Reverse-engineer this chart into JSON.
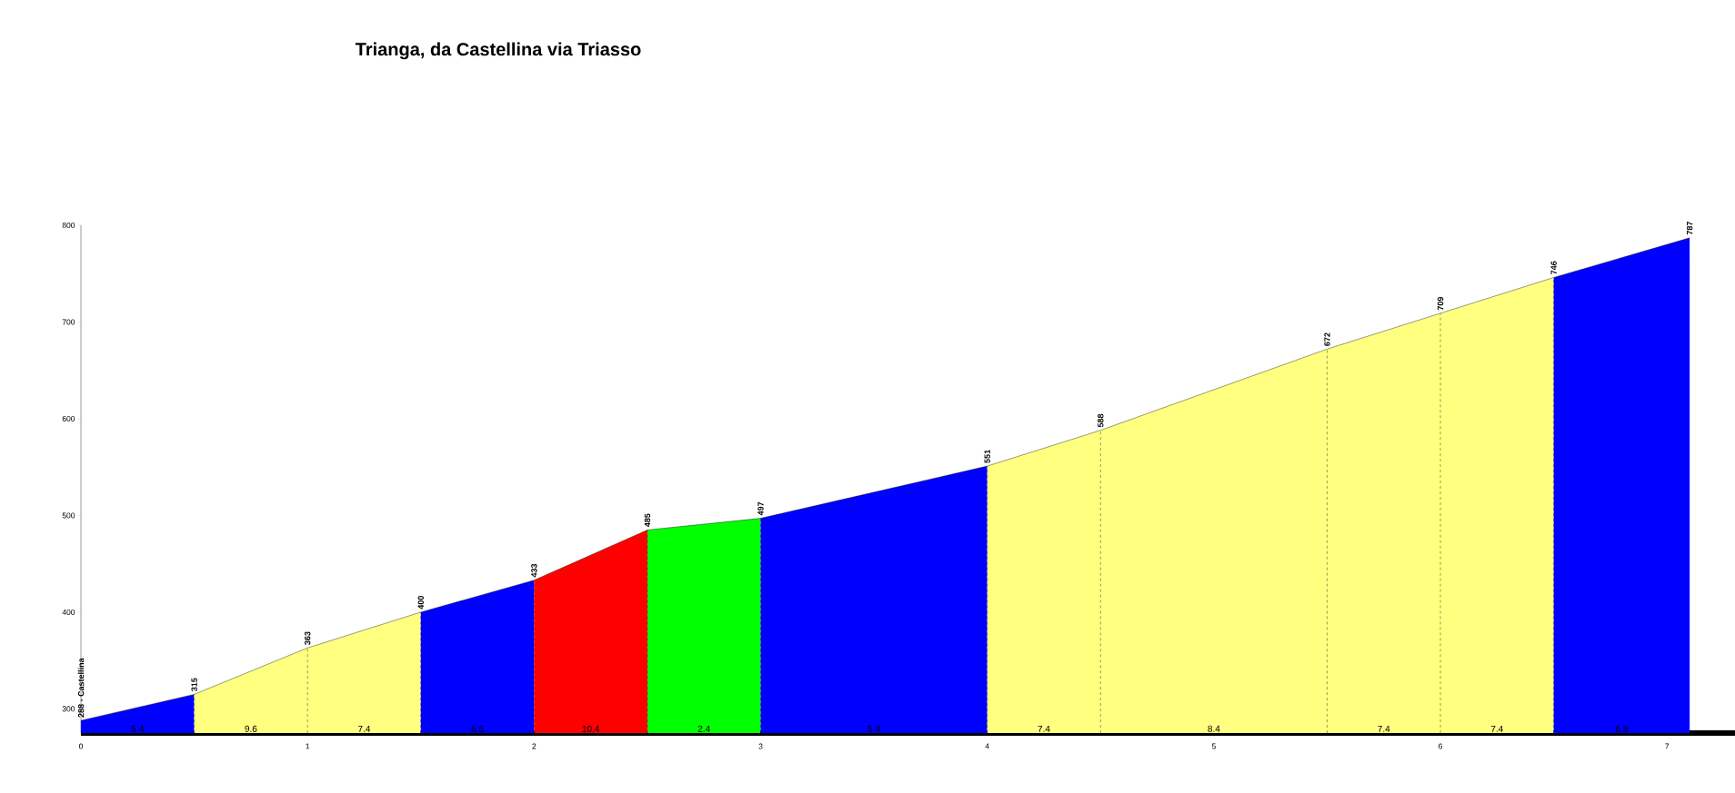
{
  "chart_data": {
    "type": "area",
    "title": "Trianga, da Castellina via Triasso",
    "series": [
      {
        "color": "#0000ff",
        "x": [
          0,
          0.5
        ],
        "values": [
          288,
          315
        ],
        "value_labels": [
          "288 - Castellina",
          null
        ]
      },
      {
        "color": "#ffff80",
        "x": [
          0.5,
          1,
          1.5
        ],
        "values": [
          315,
          363,
          400
        ],
        "value_labels": [
          "315",
          "363",
          null
        ]
      },
      {
        "color": "#0000ff",
        "x": [
          1.5,
          2
        ],
        "values": [
          400,
          433
        ],
        "value_labels": [
          "400",
          null
        ]
      },
      {
        "color": "#ff0000",
        "x": [
          2,
          2.5
        ],
        "values": [
          433,
          485
        ],
        "value_labels": [
          "433",
          null
        ]
      },
      {
        "color": "#00ff00",
        "x": [
          2.5,
          3
        ],
        "values": [
          485,
          497
        ],
        "value_labels": [
          "485",
          null
        ]
      },
      {
        "color": "#0000ff",
        "x": [
          3,
          4
        ],
        "values": [
          497,
          551
        ],
        "value_labels": [
          "497",
          null
        ]
      },
      {
        "color": "#ffff80",
        "x": [
          4,
          4.5,
          5.5,
          6,
          6.5
        ],
        "values": [
          551,
          588,
          672,
          709,
          746
        ],
        "value_labels": [
          "551",
          "588",
          "672",
          "709",
          null
        ]
      },
      {
        "color": "#0000ff",
        "x": [
          6.5,
          7.1
        ],
        "values": [
          746,
          787
        ],
        "value_labels": [
          "746",
          "787"
        ]
      }
    ],
    "annotations": [
      "5.4",
      "9.6",
      "7.4",
      "6.6",
      "10.4",
      "2.4",
      "5.4",
      "7.4",
      "8.4",
      "7.4",
      "7.4",
      "6.8"
    ],
    "xlim": [
      0,
      7.3
    ],
    "ylim": [
      275,
      800
    ],
    "xticks": [
      0,
      1,
      2,
      3,
      4,
      5,
      6,
      7
    ],
    "yticks": [
      300,
      400,
      500,
      600,
      700,
      800
    ],
    "marker": "none",
    "line_style": "solid"
  }
}
